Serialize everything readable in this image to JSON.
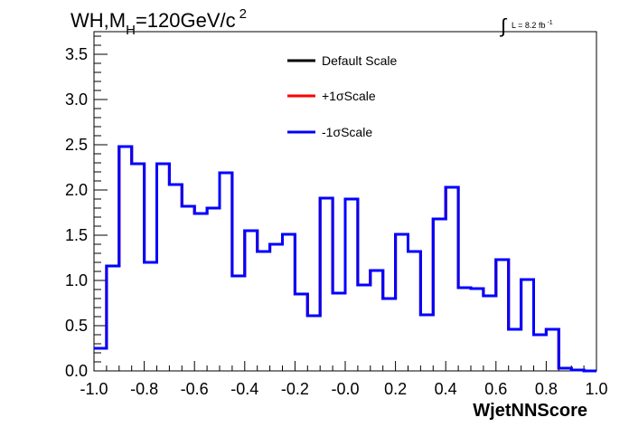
{
  "chart_data": {
    "type": "line",
    "title": {
      "main": "WH,M",
      "sub": "H",
      "rest": "=120GeV/c",
      "sup": "2"
    },
    "lumi": {
      "integral": "∫",
      "text": "L = 8.2 fb",
      "sup": "-1"
    },
    "xlabel": "WjetNNScore",
    "ylabel": "",
    "xlim": [
      -1.0,
      1.0
    ],
    "ylim": [
      0.0,
      3.75
    ],
    "x_ticks": [
      -1.0,
      -0.8,
      -0.6,
      -0.4,
      -0.2,
      0.0,
      0.2,
      0.4,
      0.6,
      0.8,
      1.0
    ],
    "x_tick_labels": [
      "-1.0",
      "-0.8",
      "-0.6",
      "-0.4",
      "-0.2",
      "-0.0",
      "0.2",
      "0.4",
      "0.6",
      "0.8",
      "1.0"
    ],
    "y_ticks": [
      0.0,
      0.5,
      1.0,
      1.5,
      2.0,
      2.5,
      3.0,
      3.5
    ],
    "y_tick_labels": [
      "0.0",
      "0.5",
      "1.0",
      "1.5",
      "2.0",
      "2.5",
      "3.0",
      "3.5"
    ],
    "bin_edges": [
      -1.0,
      -0.95,
      -0.9,
      -0.85,
      -0.8,
      -0.75,
      -0.7,
      -0.65,
      -0.6,
      -0.55,
      -0.5,
      -0.45,
      -0.4,
      -0.35,
      -0.3,
      -0.25,
      -0.2,
      -0.15,
      -0.1,
      -0.05,
      0.0,
      0.05,
      0.1,
      0.15,
      0.2,
      0.25,
      0.3,
      0.35,
      0.4,
      0.45,
      0.5,
      0.55,
      0.6,
      0.65,
      0.7,
      0.75,
      0.8,
      0.85,
      0.9,
      0.95,
      1.0
    ],
    "series": [
      {
        "name": "Default Scale",
        "color": "#000000",
        "values": [
          0.25,
          1.16,
          2.48,
          2.29,
          1.2,
          2.29,
          2.06,
          1.82,
          1.74,
          1.8,
          2.19,
          1.05,
          1.55,
          1.32,
          1.4,
          1.51,
          0.85,
          0.61,
          1.91,
          0.86,
          1.9,
          0.95,
          1.11,
          0.8,
          1.51,
          1.32,
          0.62,
          1.68,
          2.03,
          0.92,
          0.91,
          0.83,
          1.23,
          0.46,
          1.01,
          0.4,
          0.46,
          0.03,
          0.01,
          0.0
        ]
      },
      {
        "name": "+1σScale",
        "color": "#ff0000",
        "values": [
          0.25,
          1.16,
          2.48,
          2.29,
          1.2,
          2.29,
          2.06,
          1.82,
          1.74,
          1.8,
          2.19,
          1.05,
          1.55,
          1.32,
          1.4,
          1.51,
          0.85,
          0.61,
          1.91,
          0.86,
          1.9,
          0.95,
          1.11,
          0.8,
          1.51,
          1.32,
          0.62,
          1.68,
          2.03,
          0.92,
          0.91,
          0.83,
          1.23,
          0.46,
          1.01,
          0.4,
          0.46,
          0.03,
          0.01,
          0.0
        ]
      },
      {
        "name": "-1σScale",
        "color": "#0000ff",
        "values": [
          0.25,
          1.16,
          2.48,
          2.29,
          1.2,
          2.29,
          2.06,
          1.82,
          1.74,
          1.8,
          2.19,
          1.05,
          1.55,
          1.32,
          1.4,
          1.51,
          0.85,
          0.61,
          1.91,
          0.86,
          1.9,
          0.95,
          1.11,
          0.8,
          1.51,
          1.32,
          0.62,
          1.68,
          2.03,
          0.92,
          0.91,
          0.83,
          1.23,
          0.46,
          1.01,
          0.4,
          0.46,
          0.03,
          0.01,
          0.0
        ]
      }
    ],
    "legend": {
      "placement": "top-center",
      "border": false
    },
    "grid": false
  }
}
